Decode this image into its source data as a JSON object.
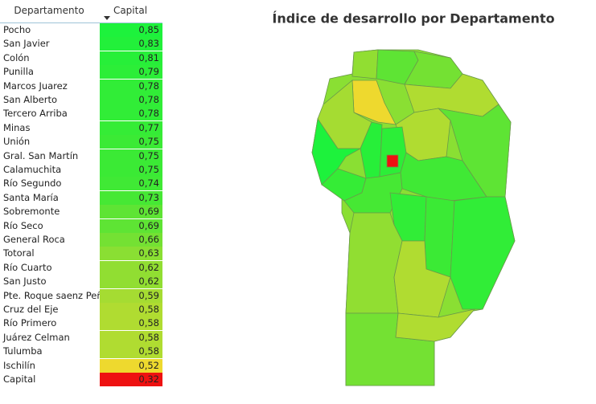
{
  "table": {
    "headers": [
      "Departamento",
      "Capital Social"
    ],
    "rows": [
      [
        "Pocho",
        "0,85"
      ],
      [
        "San Javier",
        "0,83"
      ],
      [
        "Colón",
        "0,81"
      ],
      [
        "Punilla",
        "0,79"
      ],
      [
        "Marcos Juarez",
        "0,78"
      ],
      [
        "San Alberto",
        "0,78"
      ],
      [
        "Tercero Arriba",
        "0,78"
      ],
      [
        "Minas",
        "0,77"
      ],
      [
        "Unión",
        "0,75"
      ],
      [
        "Gral. San Martín",
        "0,75"
      ],
      [
        "Calamuchita",
        "0,75"
      ],
      [
        "Río Segundo",
        "0,74"
      ],
      [
        "Santa María",
        "0,73"
      ],
      [
        "Sobremonte",
        "0,69"
      ],
      [
        "Río Seco",
        "0,69"
      ],
      [
        "General Roca",
        "0,66"
      ],
      [
        "Totoral",
        "0,63"
      ],
      [
        "Río Cuarto",
        "0,62"
      ],
      [
        "San Justo",
        "0,62"
      ],
      [
        "Pte. Roque saenz Peña",
        "0,59"
      ],
      [
        "Cruz del Eje",
        "0,58"
      ],
      [
        "Río Primero",
        "0,58"
      ],
      [
        "Juárez Celman",
        "0,58"
      ],
      [
        "Tulumba",
        "0,58"
      ],
      [
        "Ischilín",
        "0,52"
      ],
      [
        "Capital",
        "0,32"
      ]
    ],
    "cell_colors": [
      "#1df23c",
      "#22f03a",
      "#27ef39",
      "#2cee38",
      "#31ed37",
      "#31ed37",
      "#31ed37",
      "#35ec36",
      "#3bea35",
      "#3bea35",
      "#3bea35",
      "#40e935",
      "#46e834",
      "#5ee434",
      "#5ee434",
      "#74e133",
      "#8adf33",
      "#91de32",
      "#91de32",
      "#a5dc32",
      "#b0dc31",
      "#b0dc31",
      "#b0dc31",
      "#b0dc31",
      "#eed92e",
      "#ee1111"
    ]
  },
  "map": {
    "title": "Índice de desarrollo por Departamento"
  }
}
